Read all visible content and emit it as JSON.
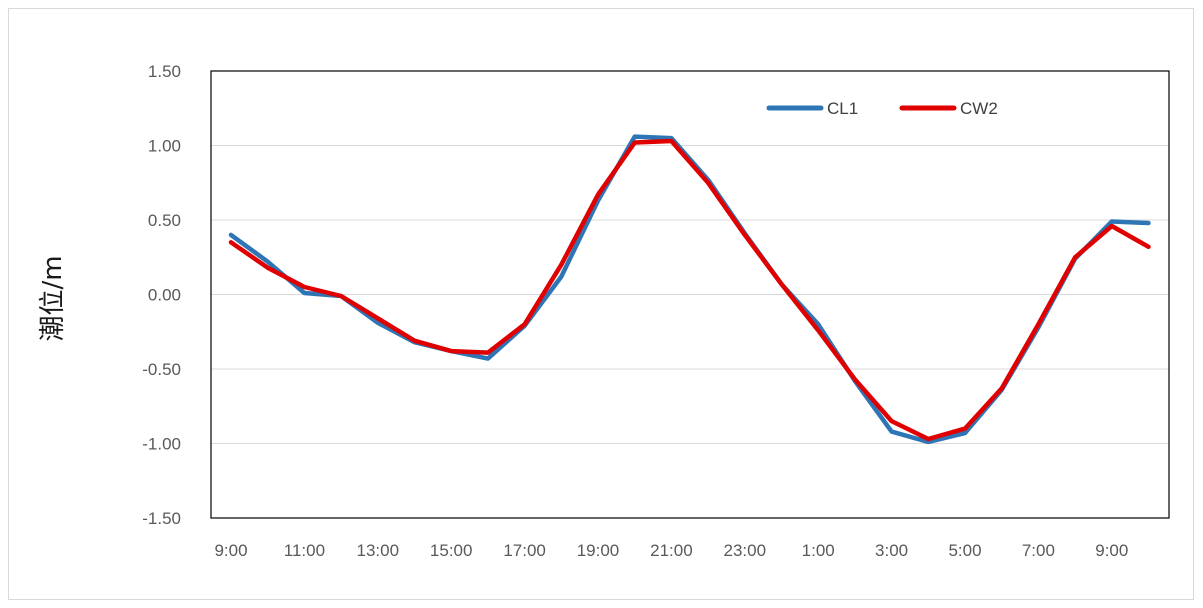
{
  "chart_data": {
    "type": "line",
    "title": "",
    "xlabel": "",
    "ylabel": "潮位/m",
    "ylim": [
      -1.5,
      1.5
    ],
    "yticks": [
      "1.50",
      "1.00",
      "0.50",
      "0.00",
      "-0.50",
      "-1.00",
      "-1.50"
    ],
    "xtick_labels": [
      "9:00",
      "11:00",
      "13:00",
      "15:00",
      "17:00",
      "19:00",
      "21:00",
      "23:00",
      "1:00",
      "3:00",
      "5:00",
      "7:00",
      "9:00"
    ],
    "categories": [
      "9:00",
      "10:00",
      "11:00",
      "12:00",
      "13:00",
      "14:00",
      "15:00",
      "16:00",
      "17:00",
      "18:00",
      "19:00",
      "20:00",
      "21:00",
      "22:00",
      "23:00",
      "0:00",
      "1:00",
      "2:00",
      "3:00",
      "4:00",
      "5:00",
      "6:00",
      "7:00",
      "8:00",
      "9:00",
      "10:00"
    ],
    "grid": true,
    "legend_position": "top-right",
    "series": [
      {
        "name": "CL1",
        "color": "#2e75b6",
        "values": [
          0.4,
          0.22,
          0.01,
          -0.01,
          -0.19,
          -0.32,
          -0.38,
          -0.43,
          -0.21,
          0.12,
          0.63,
          1.06,
          1.05,
          0.77,
          0.41,
          0.07,
          -0.2,
          -0.58,
          -0.92,
          -0.99,
          -0.93,
          -0.64,
          -0.22,
          0.24,
          0.49,
          0.48
        ]
      },
      {
        "name": "CW2",
        "color": "#e00000",
        "values": [
          0.35,
          0.18,
          0.05,
          -0.01,
          -0.16,
          -0.31,
          -0.38,
          -0.39,
          -0.2,
          0.2,
          0.67,
          1.02,
          1.03,
          0.75,
          0.4,
          0.07,
          -0.24,
          -0.57,
          -0.85,
          -0.97,
          -0.9,
          -0.63,
          -0.2,
          0.25,
          0.46,
          0.32
        ]
      }
    ]
  }
}
